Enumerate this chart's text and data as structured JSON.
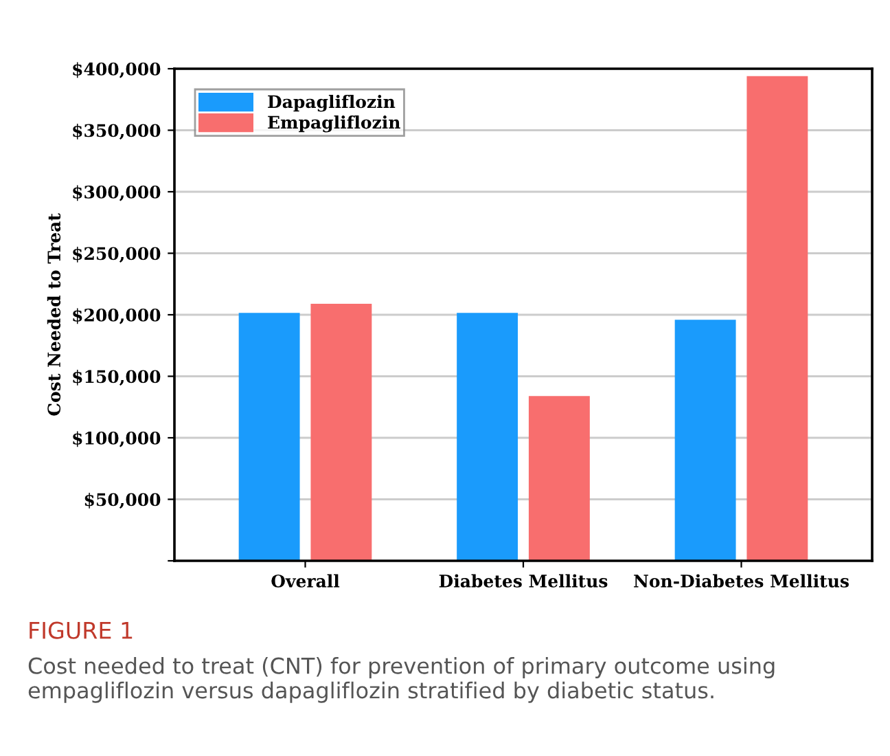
{
  "chart_data": {
    "type": "bar",
    "ylabel": "Cost Needed to Treat",
    "categories": [
      "Overall",
      "Diabetes Mellitus",
      "Non-Diabetes Mellitus"
    ],
    "series": [
      {
        "name": "Dapagliflozin",
        "color": "#1a9bfc",
        "values": [
          201500,
          201500,
          196000
        ]
      },
      {
        "name": "Empagliflozin",
        "color": "#f86e6e",
        "values": [
          209000,
          134000,
          394000
        ]
      }
    ],
    "ylim": [
      0,
      400000
    ],
    "yticks": [
      {
        "value": 0,
        "label": null
      },
      {
        "value": 50000,
        "label": "$50,000"
      },
      {
        "value": 100000,
        "label": "$100,000"
      },
      {
        "value": 150000,
        "label": "$150,000"
      },
      {
        "value": 200000,
        "label": "$200,000"
      },
      {
        "value": 250000,
        "label": "$250,000"
      },
      {
        "value": 300000,
        "label": "$300,000"
      },
      {
        "value": 350000,
        "label": "$350,000"
      },
      {
        "value": 400000,
        "label": "$400,000"
      }
    ],
    "grid": "y",
    "legend": "top left",
    "annotations": [
      "FIGURE 1",
      "Cost needed to treat (CNT) for prevention of primary outcome using empagliflozin versus dapagliflozin stratified by diabetic status."
    ]
  }
}
